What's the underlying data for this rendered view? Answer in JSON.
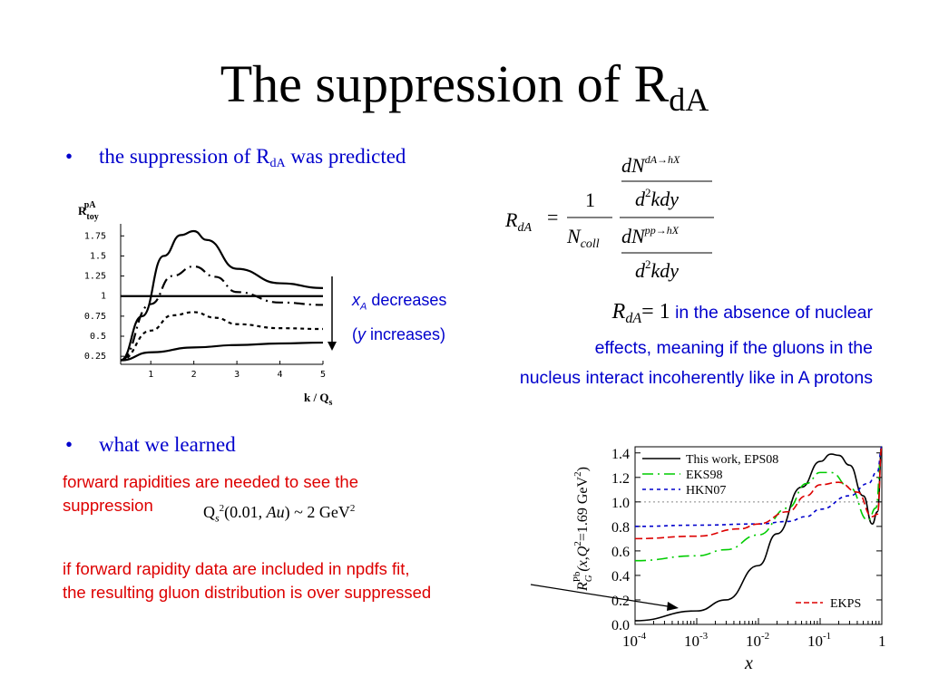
{
  "title": {
    "main": "The suppression of R",
    "sub": "dA"
  },
  "bullets": [
    {
      "marker": "•",
      "text": "the suppression of R",
      "sub": "dA",
      "text_after": " was predicted"
    },
    {
      "marker": "•",
      "text": "what we learned"
    }
  ],
  "formula": {
    "lhs": "R",
    "lhs_sub": "dA",
    "eq": "=",
    "one": "1",
    "ncoll": "N",
    "ncoll_sub": "coll",
    "num_top": "dN",
    "num_top_sup": "dA→hX",
    "den_top": "d",
    "den_top_sup": "2",
    "den_top_rest": "kdy",
    "num_bot": "dN",
    "num_bot_sup": "pp→hX",
    "den_bot": "d",
    "den_bot_sup": "2",
    "den_bot_rest": "kdy"
  },
  "absence_note": {
    "math_r": "R",
    "math_sub": "dA",
    "math_eq": "= 1",
    "line1": " in the absence of nuclear",
    "line2": "effects, meaning if the gluons in the",
    "line3": "nucleus interact incoherently like in A protons"
  },
  "xa_label": {
    "x": "x",
    "sub": "A",
    "word": " decreases",
    "paren_open": "(",
    "y": "y",
    "paren_rest": " increases)"
  },
  "learned": {
    "line1": "forward rapidities are needed to see the",
    "line2": "suppression",
    "qs_formula": {
      "q": "Q",
      "s": "s",
      "sup": "2",
      "rest": "(0.01, ",
      "au": "Au",
      "end": ") ~ 2 GeV",
      "sup2": "2"
    },
    "line3": "if forward rapidity data are included in npdfs fit,",
    "line4": "the resulting gluon distribution is over suppressed"
  },
  "colors": {
    "blue_text": "#0000cc",
    "red_text": "#dd0000",
    "eps08": "#000000",
    "eks98": "#00cc00",
    "hkn07": "#0000cc",
    "ekps": "#dd0000"
  },
  "chart_data": [
    {
      "type": "line",
      "ylabel": "R",
      "ylabel_sup": "pA",
      "ylabel_sub": "toy",
      "xlabel": "k / Q",
      "xlabel_sub": "s",
      "xlim": [
        0.3,
        5
      ],
      "ylim": [
        0.15,
        1.9
      ],
      "xticks": [
        "1",
        "2",
        "3",
        "4",
        "5"
      ],
      "yticks": [
        "0.25",
        "0.5",
        "0.75",
        "1",
        "1.25",
        "1.5",
        "1.75"
      ],
      "series": [
        {
          "style": "solid",
          "x": [
            0.3,
            0.8,
            1.3,
            1.7,
            2.0,
            2.3,
            3.0,
            4.0,
            5.0
          ],
          "values": [
            0.2,
            0.75,
            1.5,
            1.76,
            1.81,
            1.7,
            1.34,
            1.16,
            1.1
          ]
        },
        {
          "style": "dash-dot",
          "x": [
            0.3,
            1.0,
            1.5,
            2.0,
            2.5,
            3.0,
            4.0,
            5.0
          ],
          "values": [
            0.2,
            0.9,
            1.25,
            1.37,
            1.24,
            1.05,
            0.92,
            0.89
          ]
        },
        {
          "style": "dotted",
          "x": [
            0.3,
            1.0,
            1.5,
            2.0,
            2.5,
            3.0,
            4.0,
            5.0
          ],
          "values": [
            0.2,
            0.57,
            0.76,
            0.8,
            0.73,
            0.65,
            0.6,
            0.59
          ]
        },
        {
          "style": "solid",
          "x": [
            0.3,
            1.0,
            2.0,
            3.0,
            4.0,
            5.0
          ],
          "values": [
            0.2,
            0.3,
            0.36,
            0.39,
            0.41,
            0.42
          ]
        },
        {
          "style": "solid",
          "x": [
            0.3,
            5.0
          ],
          "values": [
            1.0,
            1.0
          ]
        }
      ]
    },
    {
      "type": "line",
      "xlabel": "x",
      "log_x": true,
      "ylabel": "R",
      "ylabel_sup": "Pb",
      "ylabel_sub": "G",
      "ylabel_rest": "(x,Q",
      "ylabel_sup2": "2",
      "ylabel_end": "=1.69 GeV",
      "ylabel_sup3": "2",
      "ylabel_close": ")",
      "xlim": [
        0.0001,
        1
      ],
      "ylim": [
        0,
        1.45
      ],
      "xticks": [
        {
          "base": "10",
          "exp": "-4"
        },
        {
          "base": "10",
          "exp": "-3"
        },
        {
          "base": "10",
          "exp": "-2"
        },
        {
          "base": "10",
          "exp": "-1"
        },
        {
          "base": "1",
          "exp": ""
        }
      ],
      "yticks": [
        "0.0",
        "0.2",
        "0.4",
        "0.6",
        "0.8",
        "1.0",
        "1.2",
        "1.4"
      ],
      "series": [
        {
          "name": "This work, EPS08",
          "style": "solid",
          "x": [
            0.0001,
            0.001,
            0.003,
            0.01,
            0.02,
            0.05,
            0.1,
            0.15,
            0.2,
            0.3,
            0.5,
            0.7,
            0.85,
            1.0
          ],
          "values": [
            0.03,
            0.11,
            0.2,
            0.48,
            0.74,
            1.12,
            1.33,
            1.39,
            1.38,
            1.3,
            1.05,
            0.82,
            0.92,
            1.45
          ]
        },
        {
          "name": "EKS98",
          "style": "dash-dot",
          "x": [
            0.0001,
            0.001,
            0.003,
            0.01,
            0.03,
            0.06,
            0.1,
            0.15,
            0.3,
            0.6,
            0.8,
            1.0
          ],
          "values": [
            0.52,
            0.56,
            0.61,
            0.73,
            0.95,
            1.15,
            1.24,
            1.24,
            1.12,
            0.85,
            0.95,
            1.45
          ]
        },
        {
          "name": "HKN07",
          "style": "dotted",
          "x": [
            0.0001,
            0.001,
            0.01,
            0.03,
            0.06,
            0.1,
            0.3,
            0.6,
            0.85,
            1.0
          ],
          "values": [
            0.8,
            0.81,
            0.82,
            0.84,
            0.88,
            0.94,
            1.05,
            1.15,
            1.25,
            1.45
          ]
        },
        {
          "name": "EKPS",
          "style": "dashed",
          "x": [
            0.0001,
            0.001,
            0.005,
            0.01,
            0.03,
            0.06,
            0.1,
            0.2,
            0.4,
            0.7,
            0.85,
            1.0
          ],
          "values": [
            0.7,
            0.72,
            0.78,
            0.82,
            0.92,
            1.05,
            1.14,
            1.16,
            1.08,
            0.88,
            0.9,
            1.45
          ]
        }
      ],
      "legend": "top-center"
    }
  ]
}
